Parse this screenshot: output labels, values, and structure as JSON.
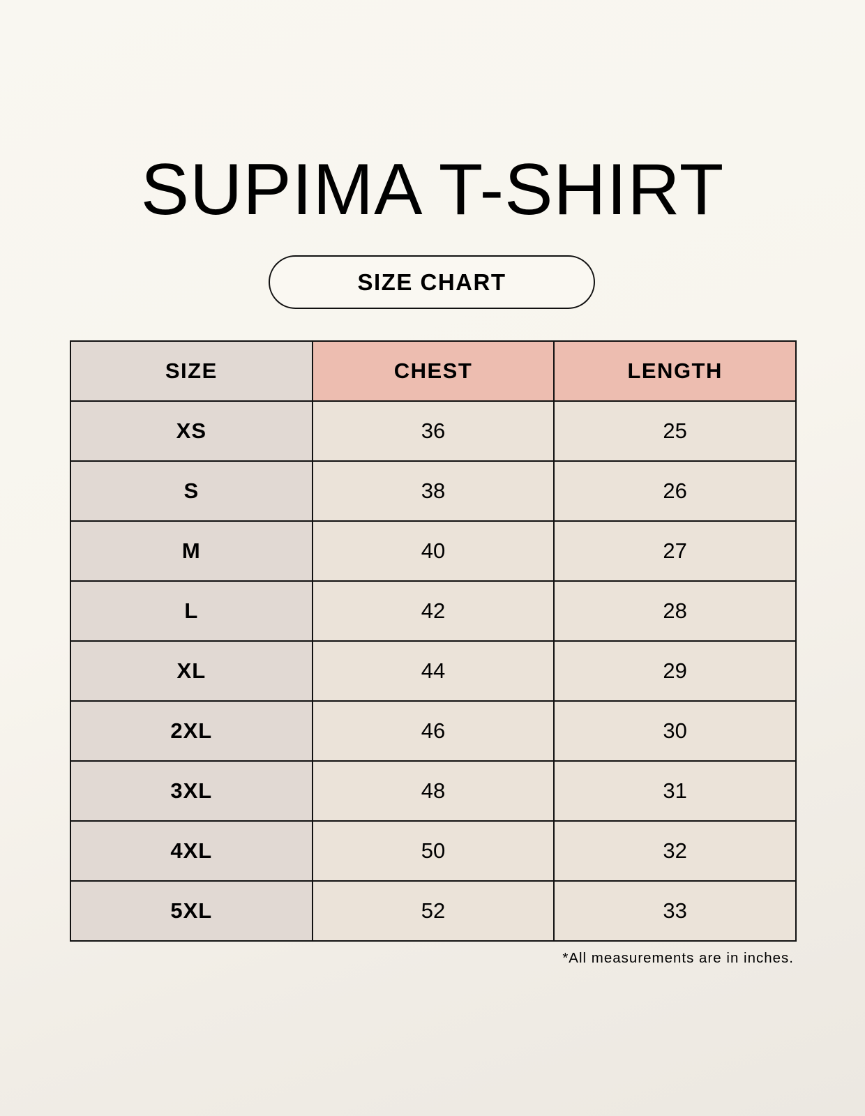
{
  "title": "SUPIMA T-SHIRT",
  "subtitle": "SIZE CHART",
  "table": {
    "headers": [
      "SIZE",
      "CHEST",
      "LENGTH"
    ],
    "rows": [
      [
        "XS",
        "36",
        "25"
      ],
      [
        "S",
        "38",
        "26"
      ],
      [
        "M",
        "40",
        "27"
      ],
      [
        "L",
        "42",
        "28"
      ],
      [
        "XL",
        "44",
        "29"
      ],
      [
        "2XL",
        "46",
        "30"
      ],
      [
        "3XL",
        "48",
        "31"
      ],
      [
        "4XL",
        "50",
        "32"
      ],
      [
        "5XL",
        "52",
        "33"
      ]
    ]
  },
  "footnote": "*All measurements are in inches.",
  "colors": {
    "size_column": "#e1d9d3",
    "header_accent": "#edbdb0",
    "value_cells": "#ebe3d9"
  }
}
